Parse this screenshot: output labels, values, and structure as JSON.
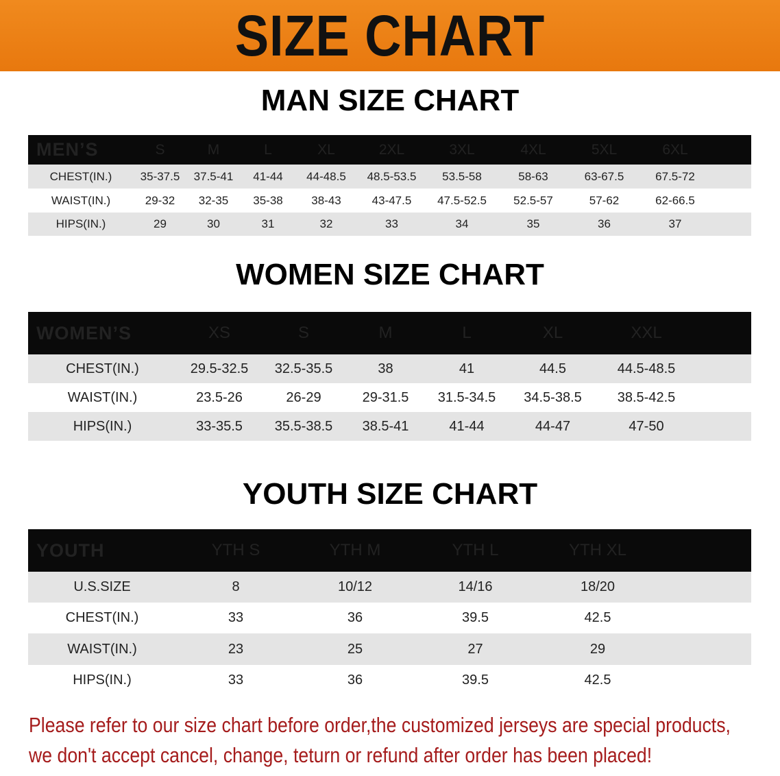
{
  "banner_title": "SIZE CHART",
  "tables": {
    "men": {
      "title": "MAN SIZE CHART",
      "header": [
        "MEN’S",
        "S",
        "M",
        "L",
        "XL",
        "2XL",
        "3XL",
        "4XL",
        "5XL",
        "6XL"
      ],
      "rows": [
        [
          "CHEST(IN.)",
          "35-37.5",
          "37.5-41",
          "41-44",
          "44-48.5",
          "48.5-53.5",
          "53.5-58",
          "58-63",
          "63-67.5",
          "67.5-72"
        ],
        [
          "WAIST(IN.)",
          "29-32",
          "32-35",
          "35-38",
          "38-43",
          "43-47.5",
          "47.5-52.5",
          "52.5-57",
          "57-62",
          "62-66.5"
        ],
        [
          "HIPS(IN.)",
          "29",
          "30",
          "31",
          "32",
          "33",
          "34",
          "35",
          "36",
          "37"
        ]
      ]
    },
    "women": {
      "title": "WOMEN SIZE CHART",
      "header": [
        "WOMEN’S",
        "XS",
        "S",
        "M",
        "L",
        "XL",
        "XXL"
      ],
      "rows": [
        [
          "CHEST(IN.)",
          "29.5-32.5",
          "32.5-35.5",
          "38",
          "41",
          "44.5",
          "44.5-48.5"
        ],
        [
          "WAIST(IN.)",
          "23.5-26",
          "26-29",
          "29-31.5",
          "31.5-34.5",
          "34.5-38.5",
          "38.5-42.5"
        ],
        [
          "HIPS(IN.)",
          "33-35.5",
          "35.5-38.5",
          "38.5-41",
          "41-44",
          "44-47",
          "47-50"
        ]
      ]
    },
    "youth": {
      "title": "YOUTH SIZE CHART",
      "header": [
        "YOUTH",
        "YTH S",
        "YTH M",
        "YTH L",
        "YTH XL"
      ],
      "rows": [
        [
          "U.S.SIZE",
          "8",
          "10/12",
          "14/16",
          "18/20"
        ],
        [
          "CHEST(IN.)",
          "33",
          "36",
          "39.5",
          "42.5"
        ],
        [
          "WAIST(IN.)",
          "23",
          "25",
          "27",
          "29"
        ],
        [
          "HIPS(IN.)",
          "33",
          "36",
          "39.5",
          "42.5"
        ]
      ]
    }
  },
  "note": [
    "Please refer to our size chart before order,the customized jerseys are special products,",
    "we don't accept cancel, change, teturn or refund after order has been placed!"
  ],
  "colors": {
    "banner": "#ee8318",
    "header_bg": "#0a0a0a",
    "note": "#a51c1c"
  }
}
